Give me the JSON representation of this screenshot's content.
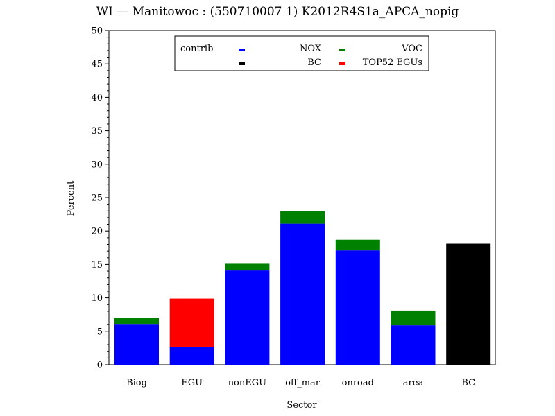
{
  "chart_data": {
    "type": "bar",
    "stacked": true,
    "title": "WI  —  Manitowoc  :  (550710007 1)  K2012R4S1a_APCA_nopig",
    "xlabel": "Sector",
    "ylabel": "Percent",
    "ylim": [
      0,
      50
    ],
    "yticks": [
      0,
      5,
      10,
      15,
      20,
      25,
      30,
      35,
      40,
      45,
      50
    ],
    "categories": [
      "Biog",
      "EGU",
      "nonEGU",
      "off_mar",
      "onroad",
      "area",
      "BC"
    ],
    "series": [
      {
        "name": "NOX",
        "color": "#0000ff",
        "values": [
          6.0,
          2.7,
          14.1,
          21.1,
          17.1,
          5.9,
          0
        ]
      },
      {
        "name": "VOC",
        "color": "#008000",
        "values": [
          1.0,
          0,
          1.0,
          1.9,
          1.6,
          2.2,
          0
        ]
      },
      {
        "name": "BC",
        "color": "#000000",
        "values": [
          0,
          0,
          0,
          0,
          0,
          0,
          18.1
        ]
      },
      {
        "name": "TOP52 EGUs",
        "color": "#ff0000",
        "values": [
          0,
          7.2,
          0,
          0,
          0,
          0,
          0
        ]
      }
    ],
    "legend": {
      "title": "contrib",
      "placement": "top-center inside plot",
      "order": [
        "NOX",
        "VOC",
        "BC",
        "TOP52 EGUs"
      ]
    },
    "grid": false
  }
}
